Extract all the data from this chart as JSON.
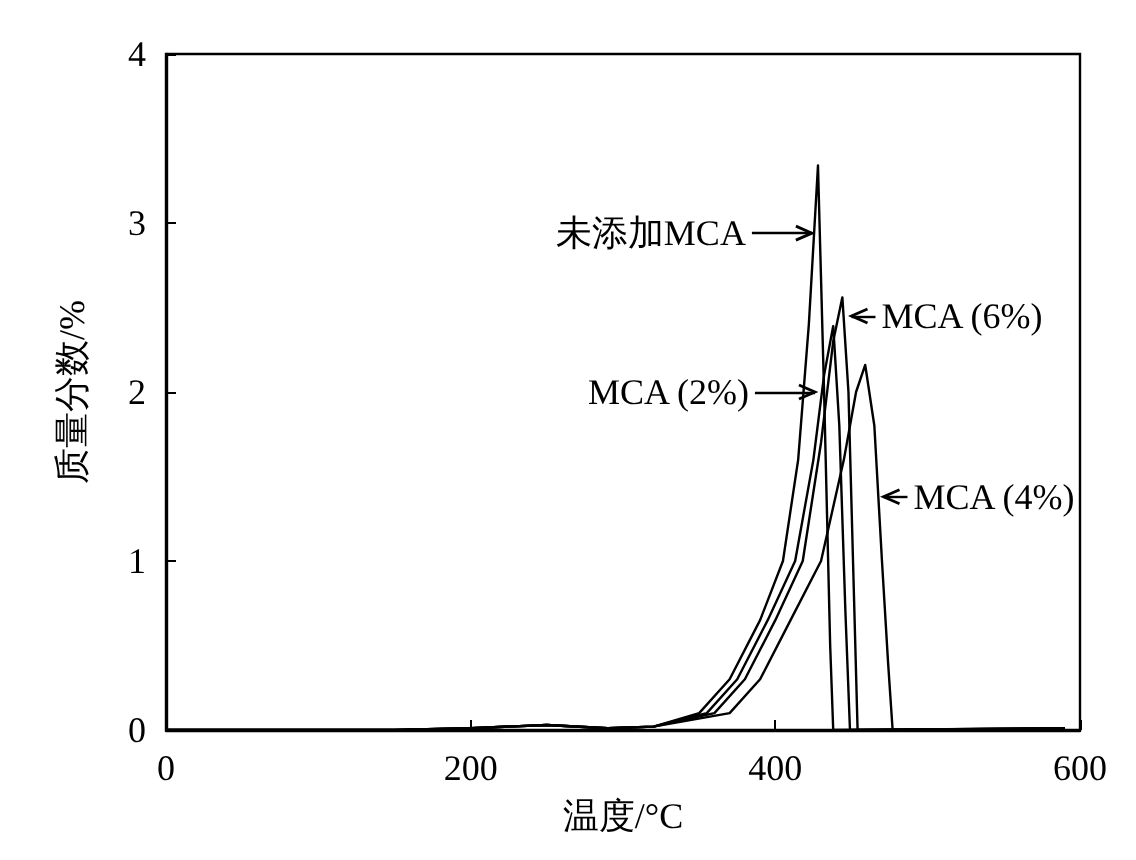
{
  "chart_data": {
    "type": "line",
    "xlabel": "温度/°C",
    "ylabel": "质量分数/%",
    "xlim": [
      0,
      600
    ],
    "xticks": [
      0,
      200,
      400,
      600
    ],
    "ylim": [
      0,
      4
    ],
    "yticks": [
      0,
      1,
      2,
      3,
      4
    ],
    "grid": false,
    "marker": "none",
    "line_style": "solid",
    "series": [
      {
        "color": "#000000",
        "x": [
          0,
          150,
          200,
          250,
          290,
          320,
          350,
          370,
          390,
          405,
          415,
          422,
          428,
          432,
          436,
          438,
          590
        ],
        "values": [
          0,
          0,
          0.01,
          0.03,
          0.01,
          0.02,
          0.1,
          0.3,
          0.65,
          1.0,
          1.6,
          2.4,
          3.34,
          2.0,
          0.5,
          0,
          0.01
        ]
      },
      {
        "color": "#000000",
        "x": [
          0,
          150,
          200,
          250,
          290,
          320,
          360,
          380,
          400,
          418,
          430,
          438,
          444,
          448,
          451,
          454,
          590
        ],
        "values": [
          0,
          0,
          0.01,
          0.03,
          0.01,
          0.02,
          0.1,
          0.3,
          0.65,
          1.0,
          1.7,
          2.3,
          2.56,
          2.0,
          1.0,
          0,
          0.01
        ]
      },
      {
        "color": "#000000",
        "x": [
          0,
          150,
          200,
          250,
          290,
          320,
          355,
          375,
          395,
          413,
          425,
          432,
          438,
          442,
          446,
          449,
          590
        ],
        "values": [
          0,
          0,
          0.01,
          0.03,
          0.01,
          0.02,
          0.1,
          0.3,
          0.65,
          1.0,
          1.6,
          2.1,
          2.39,
          1.8,
          0.7,
          0,
          0.01
        ]
      },
      {
        "color": "#000000",
        "x": [
          0,
          150,
          200,
          250,
          290,
          320,
          370,
          390,
          410,
          430,
          445,
          453,
          459,
          465,
          470,
          474,
          477,
          590
        ],
        "values": [
          0,
          0,
          0.01,
          0.03,
          0.01,
          0.02,
          0.1,
          0.3,
          0.65,
          1.0,
          1.6,
          2.0,
          2.16,
          1.8,
          1.0,
          0.4,
          0,
          0.01
        ]
      }
    ],
    "annotations": [
      {
        "text": "未添加MCA",
        "x": 424,
        "y": 2.94
      },
      {
        "text": "MCA (6%)",
        "x": 450,
        "y": 2.45
      },
      {
        "text": "MCA (2%)",
        "x": 426,
        "y": 2.0
      },
      {
        "text": "MCA (4%)",
        "x": 471,
        "y": 1.38
      }
    ]
  }
}
